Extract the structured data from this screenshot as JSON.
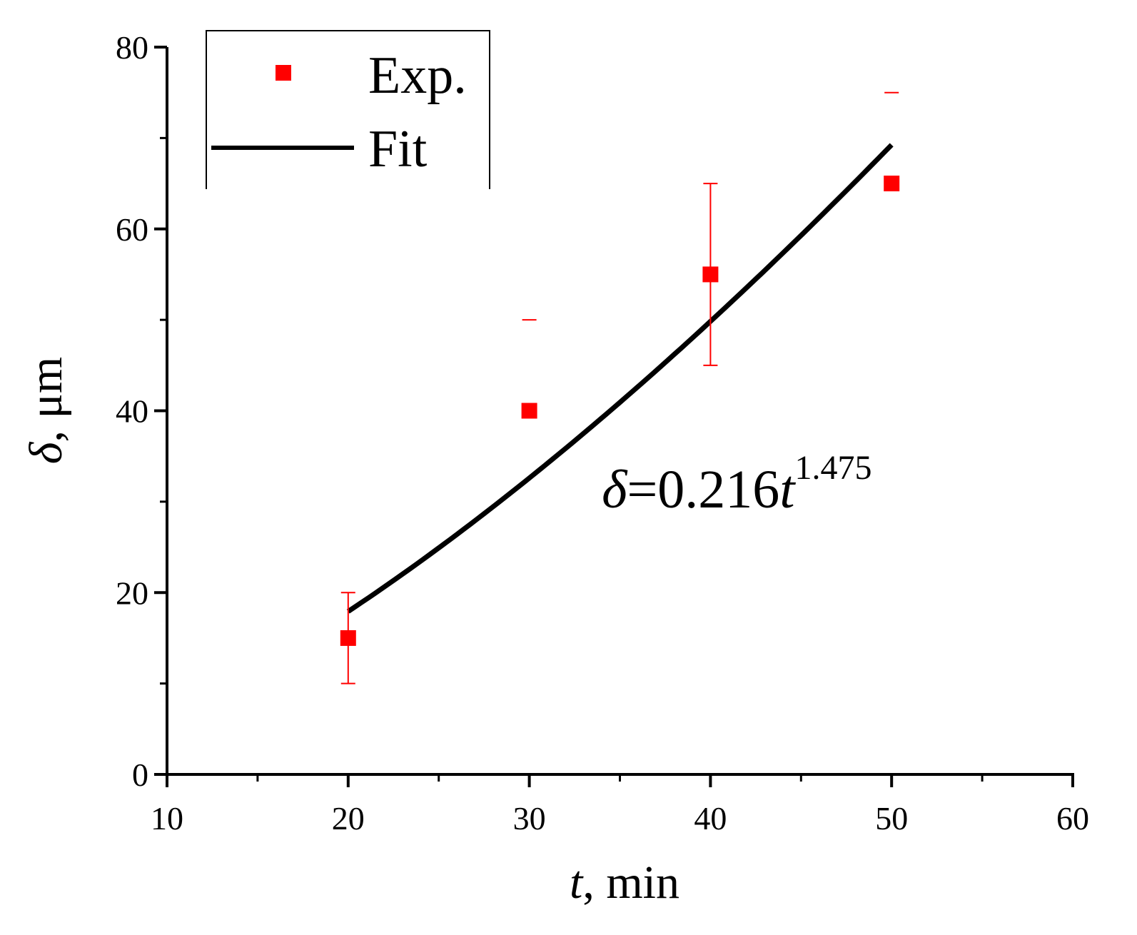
{
  "chart_data": {
    "type": "scatter",
    "xlabel": {
      "var": "t",
      "rest": ", min"
    },
    "ylabel": {
      "var": "δ",
      "rest": ", μm"
    },
    "xlim": [
      10,
      60
    ],
    "ylim": [
      0,
      80
    ],
    "xticks": [
      10,
      20,
      30,
      40,
      50,
      60
    ],
    "yticks": [
      0,
      20,
      40,
      60,
      80
    ],
    "xminor_step": 5,
    "yminor_step": 10,
    "legend": {
      "position": "top-left",
      "entries": [
        {
          "label": "Exp.",
          "kind": "marker"
        },
        {
          "label": "Fit",
          "kind": "line"
        }
      ]
    },
    "series": [
      {
        "name": "Exp.",
        "kind": "scatter",
        "color": "#ff0000",
        "points": [
          {
            "x": 20,
            "y": 15,
            "err_low": 10,
            "err_high": 20
          },
          {
            "x": 30,
            "y": 40,
            "err_low": null,
            "err_high": 50
          },
          {
            "x": 40,
            "y": 55,
            "err_low": 45,
            "err_high": 65
          },
          {
            "x": 50,
            "y": 65,
            "err_low": null,
            "err_high": 75
          }
        ]
      },
      {
        "name": "Fit",
        "kind": "line",
        "color": "#000000",
        "coefficient": 0.216,
        "exponent": 1.475,
        "x_range": [
          20,
          50
        ]
      }
    ],
    "annotation": {
      "var": "δ",
      "mid": "=0.216",
      "var2": "t",
      "sup": "1.475",
      "anchor": {
        "x": 34,
        "y": 30
      }
    }
  }
}
